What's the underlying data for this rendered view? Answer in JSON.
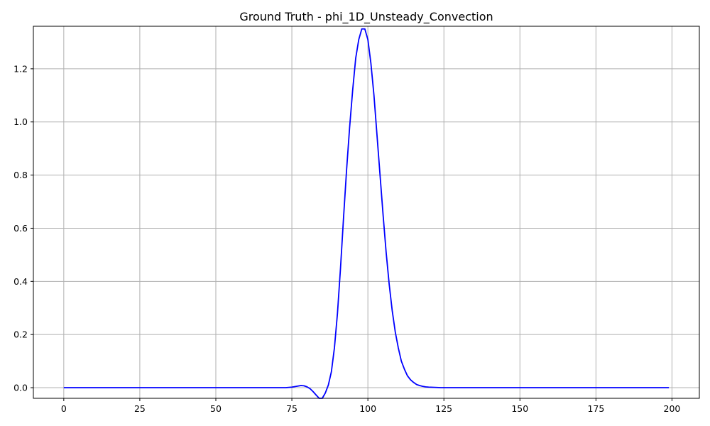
{
  "chart_data": {
    "type": "line",
    "title": "Ground Truth - phi_1D_Unsteady_Convection",
    "xlabel": "",
    "ylabel": "",
    "xlim": [
      -10,
      209
    ],
    "ylim": [
      -0.04,
      1.36
    ],
    "xticks": [
      0,
      25,
      50,
      75,
      100,
      125,
      150,
      175,
      200
    ],
    "yticks": [
      0.0,
      0.2,
      0.4,
      0.6,
      0.8,
      1.0,
      1.2
    ],
    "xtick_labels": [
      "0",
      "25",
      "50",
      "75",
      "100",
      "125",
      "150",
      "175",
      "200"
    ],
    "ytick_labels": [
      "0.0",
      "0.2",
      "0.4",
      "0.6",
      "0.8",
      "1.0",
      "1.2"
    ],
    "grid": true,
    "series": [
      {
        "color": "#0000ff",
        "x": [
          0,
          10,
          20,
          30,
          40,
          50,
          60,
          70,
          73,
          75,
          76,
          77,
          78,
          79,
          80,
          81,
          82,
          83,
          84,
          85,
          86,
          87,
          88,
          89,
          90,
          91,
          92,
          93,
          94,
          95,
          96,
          97,
          98,
          99,
          100,
          101,
          102,
          103,
          104,
          105,
          106,
          107,
          108,
          109,
          110,
          111,
          112,
          113,
          114,
          115,
          116,
          117,
          118,
          119,
          120,
          122,
          124,
          126,
          130,
          140,
          150,
          160,
          170,
          180,
          190,
          199
        ],
        "y": [
          0.0,
          0.0,
          0.0,
          0.0,
          0.0,
          0.0,
          0.0,
          0.0,
          0.0,
          0.002,
          0.004,
          0.006,
          0.008,
          0.007,
          0.003,
          -0.004,
          -0.015,
          -0.028,
          -0.04,
          -0.04,
          -0.02,
          0.01,
          0.06,
          0.15,
          0.28,
          0.45,
          0.64,
          0.82,
          0.98,
          1.12,
          1.24,
          1.31,
          1.35,
          1.35,
          1.31,
          1.22,
          1.1,
          0.95,
          0.8,
          0.65,
          0.51,
          0.39,
          0.29,
          0.21,
          0.15,
          0.1,
          0.07,
          0.045,
          0.03,
          0.02,
          0.012,
          0.008,
          0.005,
          0.003,
          0.002,
          0.001,
          0.0,
          0.0,
          0.0,
          0.0,
          0.0,
          0.0,
          0.0,
          0.0,
          0.0,
          0.0
        ]
      }
    ]
  }
}
